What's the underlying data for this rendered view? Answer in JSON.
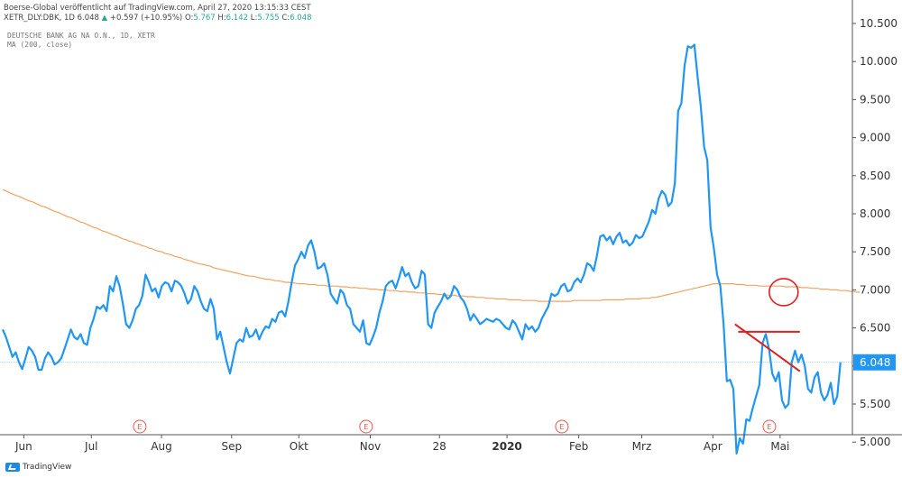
{
  "header": {
    "line1": "Boerse-Global veröffentlicht auf TradingView.com, April 27, 2020 13:15:33 CEST",
    "symbol": "XETR_DLY:DBK, 1D 6.048",
    "change": "+0.597 (+10.95%)",
    "ohlc_o_label": "O:",
    "ohlc_o": "5.767",
    "ohlc_h_label": "H:",
    "ohlc_h": "6.142",
    "ohlc_l_label": "L:",
    "ohlc_l": "5.755",
    "ohlc_c_label": "C:",
    "ohlc_c": "6.048"
  },
  "legend": {
    "title": "DEUTSCHE BANK AG NA O.N., 1D, XETR",
    "ma": "MA (200, close)"
  },
  "footer": {
    "brand": "TradingView"
  },
  "colors": {
    "price": "#2196f3",
    "ma": "#f4a261",
    "annotation": "#e0201e",
    "price_tag": "#2196f3",
    "earnings": "#ef5350"
  },
  "chart_data": {
    "type": "line",
    "title": "DEUTSCHE BANK AG NA O.N., 1D, XETR",
    "ylim": [
      4.55,
      10.62
    ],
    "y_ticks": [
      "5.000",
      "5.500",
      "6.000",
      "6.500",
      "7.000",
      "7.500",
      "8.000",
      "8.500",
      "9.000",
      "9.500",
      "10.000",
      "10.500"
    ],
    "y_tick_values": [
      5.0,
      5.5,
      6.0,
      6.5,
      7.0,
      7.5,
      8.0,
      8.5,
      9.0,
      9.5,
      10.0,
      10.5
    ],
    "x_ticks": [
      "Jun",
      "Jul",
      "Aug",
      "Sep",
      "Okt",
      "Nov",
      "28",
      "2020",
      "Feb",
      "Mrz",
      "Apr",
      "Mai"
    ],
    "x_tick_index": [
      6.5,
      27.3,
      48.9,
      70.5,
      91.2,
      113.2,
      134.5,
      155.3,
      177.4,
      196.8,
      218.7,
      239.4
    ],
    "last_price": "6.048",
    "last_value": 6.048,
    "earnings_markers": [
      "E",
      "E",
      "E",
      "E"
    ],
    "earnings_index": [
      42.2,
      111.9,
      172.2,
      236.1
    ],
    "series": [
      {
        "name": "DBK",
        "values": [
          6.48,
          6.38,
          6.25,
          6.12,
          6.18,
          6.05,
          5.96,
          6.1,
          6.25,
          6.2,
          6.12,
          5.95,
          5.95,
          6.1,
          6.18,
          6.12,
          6.02,
          6.05,
          6.1,
          6.22,
          6.35,
          6.48,
          6.38,
          6.35,
          6.42,
          6.3,
          6.28,
          6.5,
          6.62,
          6.78,
          6.75,
          6.8,
          6.72,
          7.05,
          6.98,
          7.18,
          7.05,
          6.82,
          6.55,
          6.5,
          6.6,
          6.75,
          6.8,
          6.92,
          7.2,
          7.1,
          6.98,
          7.02,
          6.9,
          7.05,
          7.1,
          7.08,
          6.98,
          7.12,
          7.1,
          7.05,
          6.95,
          6.82,
          6.88,
          7.05,
          6.98,
          6.85,
          6.75,
          6.72,
          6.88,
          6.75,
          6.35,
          6.45,
          6.25,
          6.05,
          5.9,
          6.1,
          6.3,
          6.35,
          6.32,
          6.5,
          6.38,
          6.4,
          6.48,
          6.35,
          6.45,
          6.52,
          6.5,
          6.62,
          6.58,
          6.7,
          6.72,
          6.65,
          6.85,
          7.1,
          7.32,
          7.4,
          7.5,
          7.42,
          7.58,
          7.65,
          7.5,
          7.28,
          7.3,
          7.35,
          7.2,
          6.95,
          6.88,
          6.82,
          7.0,
          6.95,
          6.8,
          6.75,
          6.55,
          6.5,
          6.45,
          6.6,
          6.3,
          6.28,
          6.38,
          6.5,
          6.7,
          6.85,
          7.05,
          7.1,
          7.12,
          7.02,
          7.15,
          7.3,
          7.18,
          7.22,
          7.1,
          7.02,
          7.05,
          7.25,
          7.2,
          6.55,
          6.5,
          6.7,
          6.78,
          6.85,
          6.95,
          6.88,
          6.92,
          7.05,
          7.0,
          6.9,
          6.85,
          6.75,
          6.6,
          6.68,
          6.62,
          6.55,
          6.58,
          6.62,
          6.6,
          6.58,
          6.62,
          6.6,
          6.55,
          6.5,
          6.48,
          6.6,
          6.55,
          6.45,
          6.35,
          6.55,
          6.48,
          6.52,
          6.45,
          6.5,
          6.62,
          6.7,
          6.78,
          6.95,
          6.92,
          6.95,
          7.05,
          7.08,
          6.98,
          7.0,
          7.1,
          7.15,
          7.1,
          7.2,
          7.35,
          7.32,
          7.25,
          7.45,
          7.7,
          7.72,
          7.65,
          7.7,
          7.6,
          7.7,
          7.75,
          7.62,
          7.65,
          7.58,
          7.62,
          7.72,
          7.68,
          7.7,
          7.8,
          7.9,
          8.05,
          8.0,
          8.2,
          8.3,
          8.25,
          8.1,
          8.15,
          8.4,
          9.35,
          9.45,
          9.95,
          10.2,
          10.18,
          10.22,
          9.8,
          9.4,
          8.88,
          8.7,
          7.82,
          7.55,
          7.2,
          7.05,
          6.55,
          5.8,
          5.82,
          5.7,
          4.85,
          5.05,
          4.98,
          5.3,
          5.28,
          5.45,
          5.6,
          5.75,
          6.3,
          6.42,
          6.22,
          5.9,
          5.8,
          5.92,
          5.55,
          5.45,
          5.5,
          6.05,
          6.2,
          6.05,
          6.15,
          6.0,
          5.7,
          5.65,
          5.85,
          5.92,
          5.65,
          5.55,
          5.62,
          5.78,
          5.5,
          5.6,
          6.048
        ]
      },
      {
        "name": "MA (200, close)",
        "values": [
          8.32,
          8.3,
          8.28,
          8.26,
          8.24,
          8.23,
          8.21,
          8.19,
          8.17,
          8.16,
          8.14,
          8.12,
          8.1,
          8.09,
          8.07,
          8.05,
          8.03,
          8.02,
          8.0,
          7.98,
          7.96,
          7.95,
          7.93,
          7.91,
          7.89,
          7.88,
          7.86,
          7.84,
          7.82,
          7.81,
          7.79,
          7.77,
          7.76,
          7.74,
          7.72,
          7.71,
          7.69,
          7.67,
          7.66,
          7.64,
          7.63,
          7.61,
          7.6,
          7.58,
          7.57,
          7.55,
          7.54,
          7.52,
          7.51,
          7.5,
          7.48,
          7.47,
          7.46,
          7.44,
          7.43,
          7.42,
          7.4,
          7.39,
          7.38,
          7.36,
          7.35,
          7.34,
          7.33,
          7.32,
          7.31,
          7.29,
          7.28,
          7.27,
          7.26,
          7.25,
          7.24,
          7.23,
          7.22,
          7.21,
          7.2,
          7.19,
          7.18,
          7.18,
          7.17,
          7.16,
          7.15,
          7.14,
          7.14,
          7.13,
          7.12,
          7.12,
          7.11,
          7.1,
          7.1,
          7.09,
          7.09,
          7.08,
          7.08,
          7.08,
          7.07,
          7.07,
          7.07,
          7.06,
          7.06,
          7.06,
          7.05,
          7.05,
          7.05,
          7.05,
          7.04,
          7.04,
          7.04,
          7.03,
          7.03,
          7.03,
          7.02,
          7.02,
          7.02,
          7.01,
          7.01,
          7.01,
          7.0,
          7.0,
          7.0,
          6.99,
          6.99,
          6.99,
          6.98,
          6.98,
          6.98,
          6.97,
          6.97,
          6.97,
          6.96,
          6.96,
          6.96,
          6.95,
          6.95,
          6.95,
          6.94,
          6.94,
          6.94,
          6.93,
          6.93,
          6.93,
          6.92,
          6.92,
          6.92,
          6.91,
          6.91,
          6.91,
          6.9,
          6.9,
          6.9,
          6.89,
          6.89,
          6.89,
          6.88,
          6.88,
          6.88,
          6.88,
          6.87,
          6.87,
          6.87,
          6.87,
          6.86,
          6.86,
          6.86,
          6.86,
          6.86,
          6.85,
          6.85,
          6.85,
          6.85,
          6.85,
          6.85,
          6.85,
          6.85,
          6.85,
          6.85,
          6.85,
          6.86,
          6.86,
          6.86,
          6.86,
          6.86,
          6.86,
          6.86,
          6.86,
          6.86,
          6.87,
          6.87,
          6.87,
          6.87,
          6.87,
          6.87,
          6.87,
          6.88,
          6.88,
          6.88,
          6.88,
          6.88,
          6.89,
          6.89,
          6.89,
          6.9,
          6.9,
          6.91,
          6.92,
          6.93,
          6.94,
          6.95,
          6.96,
          6.97,
          6.98,
          6.99,
          7.0,
          7.01,
          7.02,
          7.03,
          7.04,
          7.05,
          7.06,
          7.07,
          7.08,
          7.08,
          7.08,
          7.08,
          7.08,
          7.08,
          7.08,
          7.07,
          7.07,
          7.07,
          7.06,
          7.06,
          7.06,
          7.06,
          7.05,
          7.05,
          7.05,
          7.05,
          7.05,
          7.05,
          7.05,
          7.05,
          7.04,
          7.04,
          7.04,
          7.04,
          7.04,
          7.03,
          7.03,
          7.03,
          7.02,
          7.02,
          7.02,
          7.01,
          7.01,
          7.01,
          7.0,
          7.0,
          7.0,
          6.99,
          6.99,
          6.99,
          6.98,
          6.98,
          6.97,
          6.97
        ]
      }
    ],
    "annotations": {
      "horizontal_line": {
        "x": [
          226.5,
          245.5
        ],
        "y": 6.45
      },
      "trend_line": {
        "x": [
          225.5,
          245.5
        ],
        "y": [
          6.55,
          5.93
        ]
      },
      "circle": {
        "x": 240.5,
        "y": 6.97
      }
    }
  }
}
